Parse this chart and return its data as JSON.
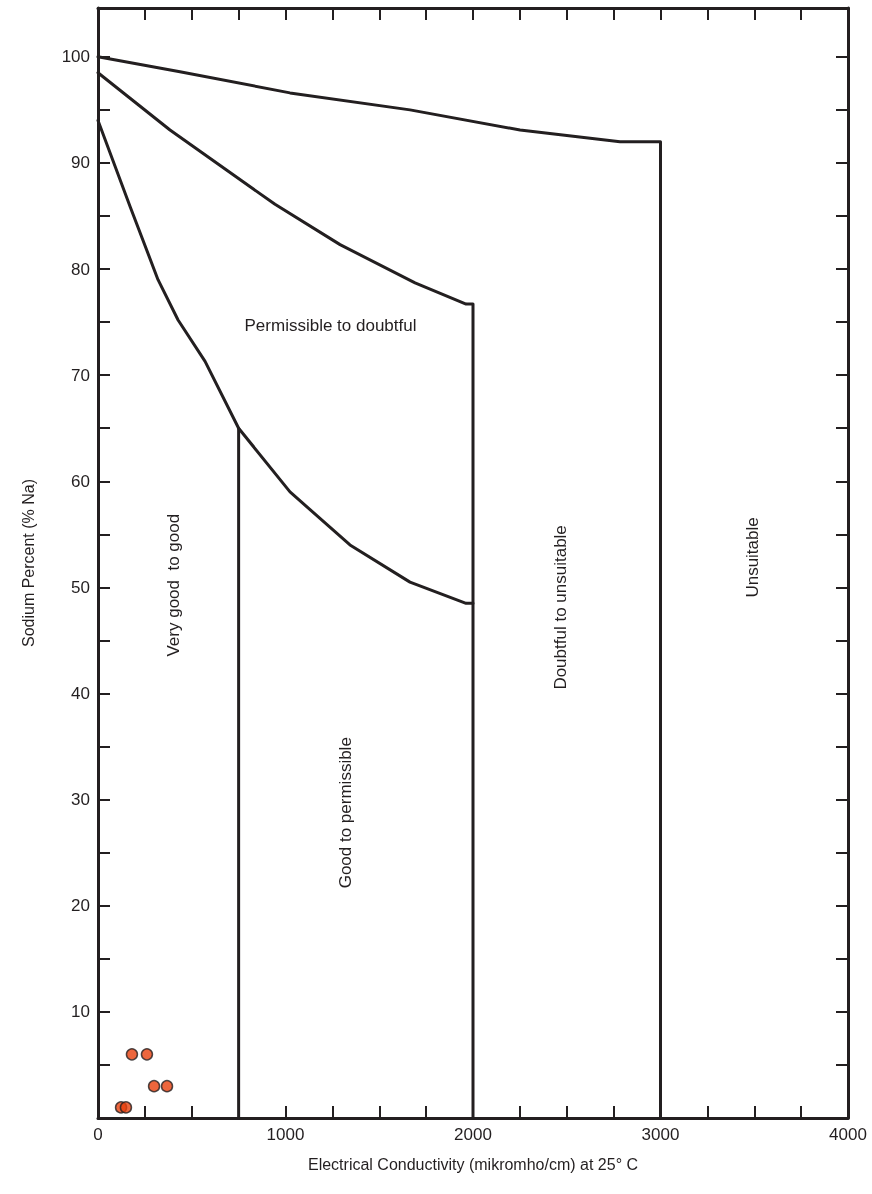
{
  "chart_data": {
    "type": "line",
    "xlabel": "Electrical Conductivity (mikromho/cm) at 25° C",
    "ylabel": "Sodium Percent (% Na)",
    "xlim": [
      0,
      4000
    ],
    "ylim": [
      0,
      104.6
    ],
    "xticks": [
      0,
      {
        "value": 250,
        "label": null
      },
      {
        "value": 500,
        "label": null
      },
      {
        "value": 750,
        "label": null
      },
      1000,
      {
        "value": 1250,
        "label": null
      },
      {
        "value": 1500,
        "label": null
      },
      {
        "value": 1750,
        "label": null
      },
      2000,
      {
        "value": 2250,
        "label": null
      },
      {
        "value": 2500,
        "label": null
      },
      {
        "value": 2750,
        "label": null
      },
      3000,
      {
        "value": 3250,
        "label": null
      },
      {
        "value": 3500,
        "label": null
      },
      {
        "value": 3750,
        "label": null
      },
      4000
    ],
    "yticks": [
      {
        "value": 5,
        "label": null
      },
      10,
      {
        "value": 15,
        "label": null
      },
      20,
      {
        "value": 25,
        "label": null
      },
      30,
      {
        "value": 35,
        "label": null
      },
      40,
      {
        "value": 45,
        "label": null
      },
      50,
      {
        "value": 55,
        "label": null
      },
      60,
      {
        "value": 65,
        "label": null
      },
      70,
      {
        "value": 75,
        "label": null
      },
      80,
      {
        "value": 85,
        "label": null
      },
      90,
      {
        "value": 95,
        "label": null
      },
      100
    ],
    "grid": false,
    "series": [
      {
        "color": "#231f20",
        "marker": "none",
        "x": [
          0,
          437,
          1024,
          1664,
          2251,
          2784,
          2971,
          3000,
          3000
        ],
        "values": [
          100,
          98.6,
          96.6,
          95,
          93.1,
          92,
          92,
          92,
          0
        ]
      },
      {
        "color": "#231f20",
        "marker": "none",
        "x": [
          0,
          384,
          944,
          1291,
          1691,
          1963,
          2000,
          2000
        ],
        "values": [
          98.5,
          93.1,
          86.1,
          82.3,
          78.7,
          76.7,
          76.7,
          0
        ]
      },
      {
        "color": "#231f20",
        "marker": "none",
        "x": [
          0,
          171,
          320,
          427,
          571,
          750,
          1024,
          1344,
          1664,
          1963,
          2000
        ],
        "values": [
          94,
          85.9,
          79,
          75.2,
          71.3,
          65,
          59,
          54,
          50.5,
          48.5,
          48.5
        ]
      },
      {
        "color": "#231f20",
        "marker": "none",
        "x": [
          750,
          750
        ],
        "values": [
          65,
          0
        ]
      },
      {
        "type": "scatter",
        "color": "#e8400c",
        "marker": "circle",
        "x": [
          181,
          261,
          299,
          368,
          123,
          149
        ],
        "values": [
          6,
          6,
          3,
          3,
          1,
          1
        ]
      }
    ],
    "annotations": [
      "Permissible to doubtful",
      "Very good  to good",
      "Good to permissible",
      "Doubtful to unsuitable",
      "Unsuitable"
    ]
  }
}
